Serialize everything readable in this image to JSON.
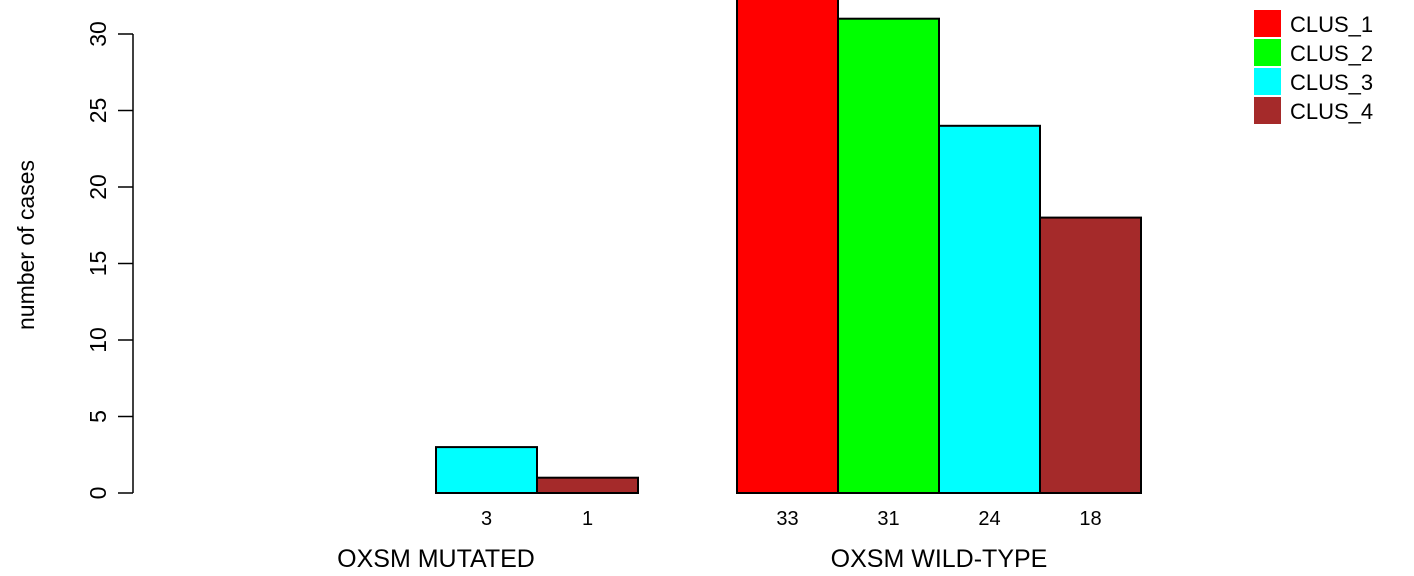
{
  "chart_data": {
    "type": "bar",
    "ylabel": "number of cases",
    "ylim": [
      0,
      32.5
    ],
    "y_ticks": [
      0,
      5,
      10,
      15,
      20,
      25,
      30
    ],
    "groups": [
      {
        "label": "OXSM MUTATED",
        "values": [
          0,
          0,
          3,
          1
        ],
        "value_labels": [
          "",
          "",
          "3",
          "1"
        ]
      },
      {
        "label": "OXSM WILD-TYPE",
        "values": [
          33,
          31,
          24,
          18
        ],
        "value_labels": [
          "33",
          "31",
          "24",
          "18"
        ]
      }
    ],
    "series": [
      {
        "name": "CLUS_1",
        "color": "#ff0000"
      },
      {
        "name": "CLUS_2",
        "color": "#00ff00"
      },
      {
        "name": "CLUS_3",
        "color": "#00ffff"
      },
      {
        "name": "CLUS_4",
        "color": "#a52a2a"
      }
    ],
    "legend_position": "top-right",
    "grid": false
  }
}
